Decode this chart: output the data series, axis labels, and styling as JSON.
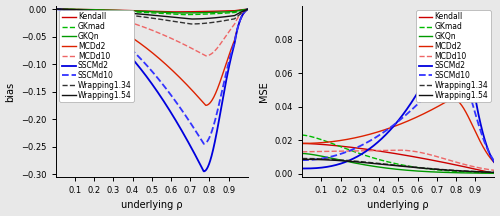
{
  "series": {
    "Kendall": {
      "color": "#cc0000",
      "linestyle": "solid",
      "linewidth": 1.0
    },
    "GKmad": {
      "color": "#00bb00",
      "linestyle": "dashed",
      "linewidth": 1.0
    },
    "GKQn": {
      "color": "#009900",
      "linestyle": "solid",
      "linewidth": 1.0
    },
    "MCDd2": {
      "color": "#dd2200",
      "linestyle": "solid",
      "linewidth": 1.0
    },
    "MCDd10": {
      "color": "#ee6666",
      "linestyle": "dashed",
      "linewidth": 1.0
    },
    "SSCMd2": {
      "color": "#0000dd",
      "linestyle": "solid",
      "linewidth": 1.3
    },
    "SSCMd10": {
      "color": "#3333ff",
      "linestyle": "dashed",
      "linewidth": 1.3
    },
    "Wrapping1.34": {
      "color": "#333333",
      "linestyle": "dashed",
      "linewidth": 1.0
    },
    "Wrapping1.54": {
      "color": "#111111",
      "linestyle": "solid",
      "linewidth": 1.0
    }
  },
  "xlim": [
    0.0,
    1.0
  ],
  "bias_ylim": [
    -0.305,
    0.005
  ],
  "mse_ylim": [
    -0.002,
    0.1
  ],
  "xlabel": "underlying ρ",
  "ylabel_left": "bias",
  "ylabel_right": "MSE",
  "xticks": [
    0.1,
    0.2,
    0.3,
    0.4,
    0.5,
    0.6,
    0.7,
    0.8,
    0.9
  ],
  "bias_yticks": [
    0.0,
    -0.05,
    -0.1,
    -0.15,
    -0.2,
    -0.25,
    -0.3
  ],
  "mse_yticks": [
    0.0,
    0.02,
    0.04,
    0.06,
    0.08
  ],
  "background_color": "#e8e8e8",
  "fontsize": 7,
  "legend_fontsize": 5.5
}
